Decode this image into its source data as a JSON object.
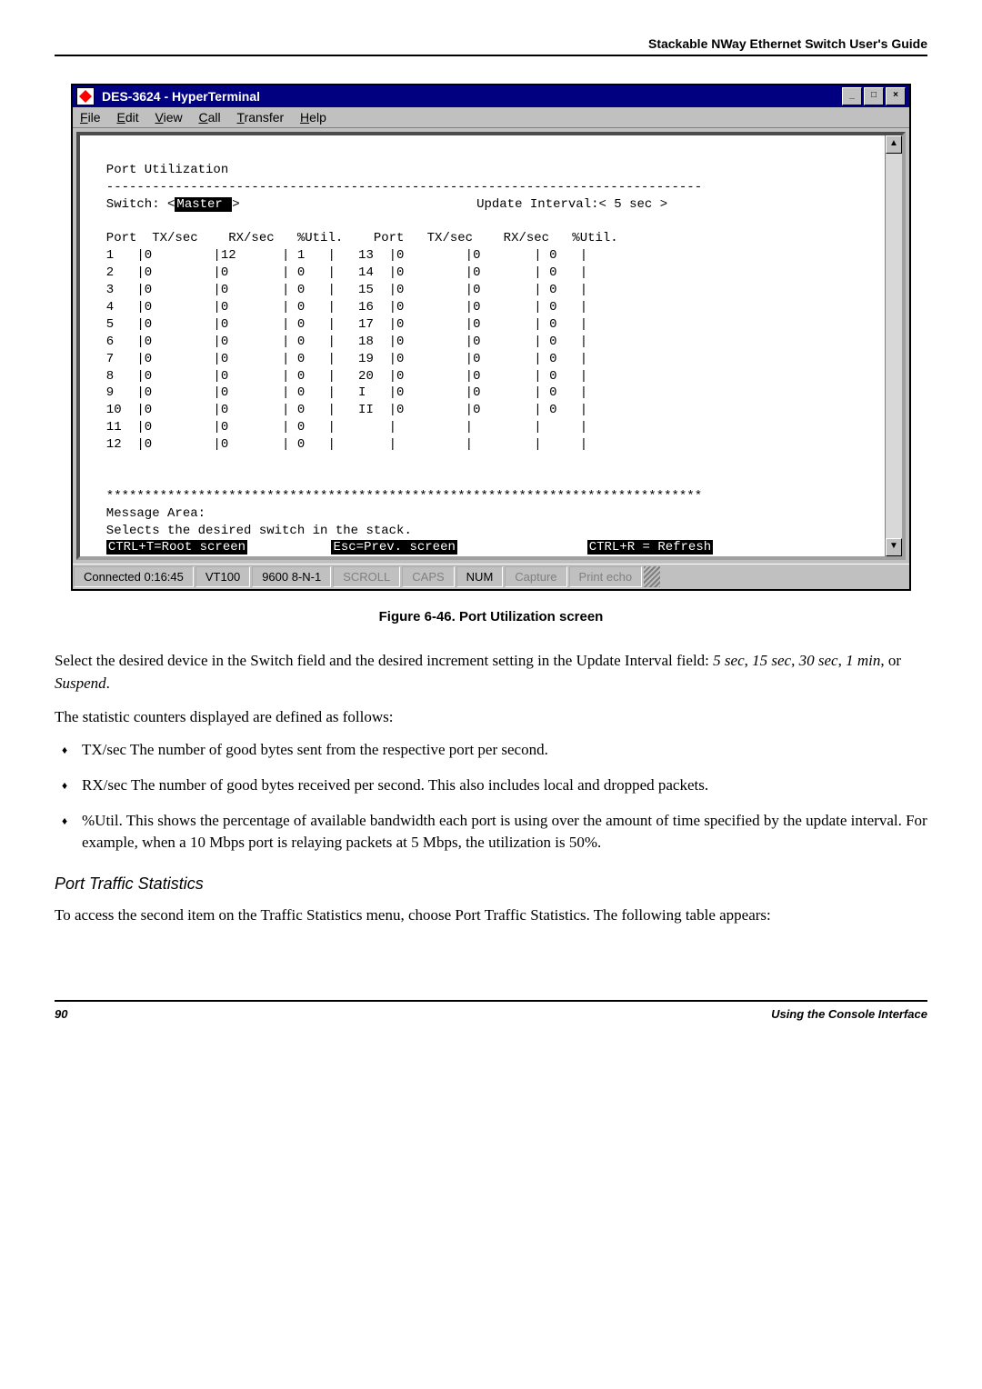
{
  "header": {
    "doc_title": "Stackable NWay Ethernet Switch User's Guide"
  },
  "window": {
    "title": "DES-3624 - HyperTerminal",
    "menu": [
      "File",
      "Edit",
      "View",
      "Call",
      "Transfer",
      "Help"
    ],
    "controls": {
      "min": "_",
      "max": "□",
      "close": "×"
    }
  },
  "terminal": {
    "heading": "Port Utilization",
    "switch_label": "Switch: <",
    "switch_value": "Master ",
    "switch_close": ">",
    "update_label": "Update Interval:< 5 sec >",
    "columns": [
      "Port",
      "TX/sec",
      "RX/sec",
      "%Util.",
      "Port",
      "TX/sec",
      "RX/sec",
      "%Util."
    ],
    "rows_left": [
      {
        "port": "1",
        "tx": "0",
        "rx": "12",
        "u": "1"
      },
      {
        "port": "2",
        "tx": "0",
        "rx": "0",
        "u": "0"
      },
      {
        "port": "3",
        "tx": "0",
        "rx": "0",
        "u": "0"
      },
      {
        "port": "4",
        "tx": "0",
        "rx": "0",
        "u": "0"
      },
      {
        "port": "5",
        "tx": "0",
        "rx": "0",
        "u": "0"
      },
      {
        "port": "6",
        "tx": "0",
        "rx": "0",
        "u": "0"
      },
      {
        "port": "7",
        "tx": "0",
        "rx": "0",
        "u": "0"
      },
      {
        "port": "8",
        "tx": "0",
        "rx": "0",
        "u": "0"
      },
      {
        "port": "9",
        "tx": "0",
        "rx": "0",
        "u": "0"
      },
      {
        "port": "10",
        "tx": "0",
        "rx": "0",
        "u": "0"
      },
      {
        "port": "11",
        "tx": "0",
        "rx": "0",
        "u": "0"
      },
      {
        "port": "12",
        "tx": "0",
        "rx": "0",
        "u": "0"
      }
    ],
    "rows_right": [
      {
        "port": "13",
        "tx": "0",
        "rx": "0",
        "u": "0"
      },
      {
        "port": "14",
        "tx": "0",
        "rx": "0",
        "u": "0"
      },
      {
        "port": "15",
        "tx": "0",
        "rx": "0",
        "u": "0"
      },
      {
        "port": "16",
        "tx": "0",
        "rx": "0",
        "u": "0"
      },
      {
        "port": "17",
        "tx": "0",
        "rx": "0",
        "u": "0"
      },
      {
        "port": "18",
        "tx": "0",
        "rx": "0",
        "u": "0"
      },
      {
        "port": "19",
        "tx": "0",
        "rx": "0",
        "u": "0"
      },
      {
        "port": "20",
        "tx": "0",
        "rx": "0",
        "u": "0"
      },
      {
        "port": "I",
        "tx": "0",
        "rx": "0",
        "u": "0"
      },
      {
        "port": "II",
        "tx": "0",
        "rx": "0",
        "u": "0"
      },
      {
        "port": "",
        "tx": "",
        "rx": "",
        "u": ""
      },
      {
        "port": "",
        "tx": "",
        "rx": "",
        "u": ""
      }
    ],
    "msg_area_label": "Message Area:",
    "msg_area_text": "Selects the desired switch in the stack.",
    "footer_left": "CTRL+T=Root screen",
    "footer_mid": "Esc=Prev. screen",
    "footer_right": "CTRL+R = Refresh"
  },
  "statusbar": {
    "connected": "Connected 0:16:45",
    "emul": "VT100",
    "line": "9600 8-N-1",
    "scroll": "SCROLL",
    "caps": "CAPS",
    "num": "NUM",
    "capture": "Capture",
    "echo": "Print echo"
  },
  "caption": "Figure 6-46.  Port Utilization screen",
  "para1": "Select the desired device in the Switch field and the desired increment setting in the Update Interval field: <i>5 sec</i>, <i>15 sec</i>, <i>30 sec</i>, <i>1 min</i>, or <i>Suspend</i>.",
  "para2": "The statistic counters displayed are defined as follows:",
  "bullets": [
    "TX/sec  The number of good bytes sent from the respective port per second.",
    "RX/sec  The number of good bytes received per second. This also includes local and dropped packets.",
    "%Util.  This shows the percentage of available bandwidth each port is using over the amount of time specified by the update interval. For example, when a 10 Mbps port is relaying packets at 5 Mbps, the utilization is 50%."
  ],
  "section": "Port Traffic Statistics",
  "para3": "To access the second item on the Traffic Statistics menu, choose Port Traffic Statistics. The following table appears:",
  "footer": {
    "page": "90",
    "chapter": "Using the Console Interface"
  }
}
